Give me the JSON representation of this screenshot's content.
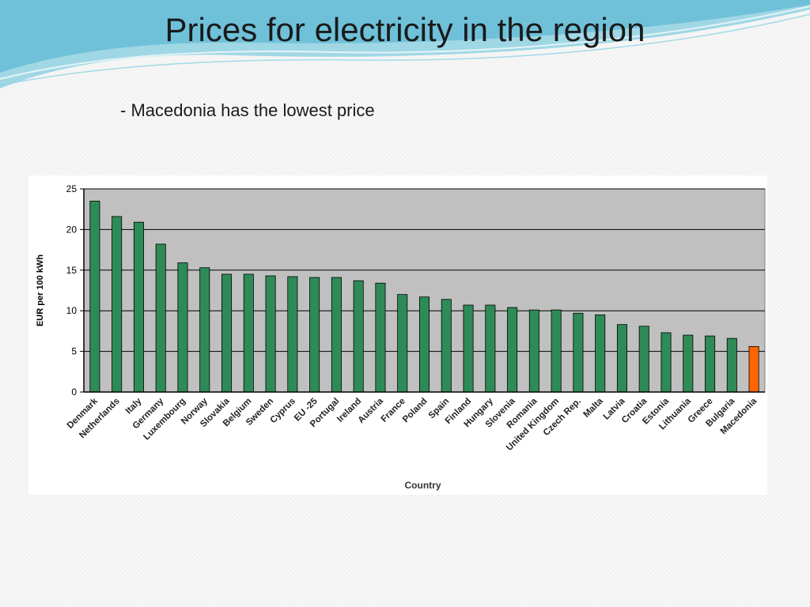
{
  "slide": {
    "title": "Prices for electricity in the region",
    "bullet": "- Macedonia has the lowest price"
  },
  "colors": {
    "bar": "#2e8b57",
    "highlight_bar": "#ff6600",
    "plot_bg": "#c0c0c0",
    "swoosh": "#5bbfd8"
  },
  "chart_data": {
    "type": "bar",
    "xlabel": "Country",
    "ylabel": "EUR per 100 kWh",
    "ylim": [
      0,
      25
    ],
    "yticks": [
      0,
      5,
      10,
      15,
      20,
      25
    ],
    "grid": true,
    "highlight": "Macedonia",
    "categories": [
      "Denmark",
      "Netherlands",
      "Italy",
      "Germany",
      "Luxembourg",
      "Norway",
      "Slovakia",
      "Belgium",
      "Sweden",
      "Cyprus",
      "EU -25",
      "Portugal",
      "Ireland",
      "Austria",
      "France",
      "Poland",
      "Spain",
      "Finland",
      "Hungary",
      "Slovenia",
      "Romania",
      "United Kingdom",
      "Czech Rep.",
      "Malta",
      "Latvia",
      "Croatia",
      "Estonia",
      "Lithuania",
      "Greece",
      "Bulgaria",
      "Macedonia"
    ],
    "values": [
      23.5,
      21.6,
      20.9,
      18.2,
      15.9,
      15.3,
      14.5,
      14.5,
      14.3,
      14.2,
      14.1,
      14.1,
      13.7,
      13.4,
      12.0,
      11.7,
      11.4,
      10.7,
      10.7,
      10.4,
      10.1,
      10.1,
      9.7,
      9.5,
      8.3,
      8.1,
      7.3,
      7.0,
      6.9,
      6.6,
      5.6
    ]
  }
}
